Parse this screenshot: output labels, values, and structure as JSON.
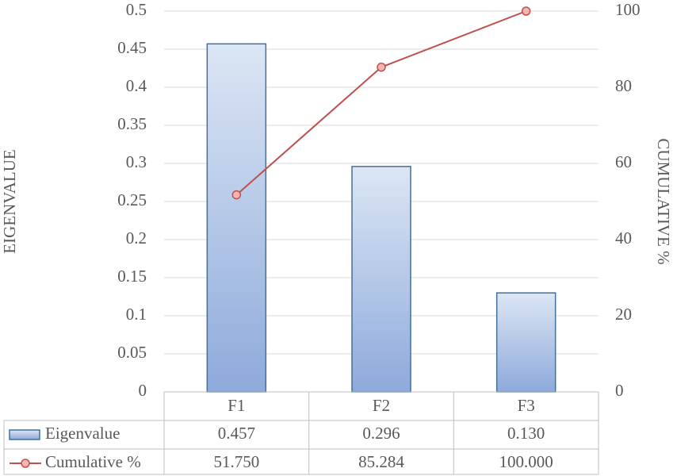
{
  "chart_data": {
    "type": "bar",
    "categories": [
      "F1",
      "F2",
      "F3"
    ],
    "ylabel": "EIGENVALUE",
    "y2label": "CUMULATIVE %",
    "ylim": [
      0,
      0.5
    ],
    "yticks": [
      0,
      0.05,
      0.1,
      0.15,
      0.2,
      0.25,
      0.3,
      0.35,
      0.4,
      0.45,
      0.5
    ],
    "y2lim": [
      0,
      100
    ],
    "y2ticks": [
      0,
      20,
      40,
      60,
      80,
      100
    ],
    "grid": true,
    "series": [
      {
        "name": "Eigenvalue",
        "type": "bar",
        "color": "#8eaadb",
        "values": [
          0.457,
          0.296,
          0.13
        ],
        "value_labels": [
          "0.457",
          "0.296",
          "0.130"
        ]
      },
      {
        "name": "Cumulative %",
        "type": "line",
        "axis": "y2",
        "color": "#c0504d",
        "values": [
          51.75,
          85.284,
          100
        ],
        "value_labels": [
          "51.750",
          "85.284",
          "100.000"
        ]
      }
    ]
  }
}
